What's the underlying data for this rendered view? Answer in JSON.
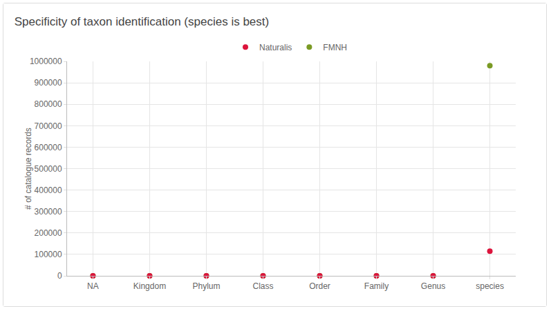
{
  "chart_data": {
    "type": "scatter",
    "title": "Specificity of taxon identification (species is best)",
    "y_label": "# of catalogue records",
    "categories": [
      "NA",
      "Kingdom",
      "Phylum",
      "Class",
      "Order",
      "Family",
      "Genus",
      "species"
    ],
    "series": [
      {
        "name": "Naturalis",
        "color": "#dc143c",
        "values": [
          0,
          0,
          0,
          0,
          0,
          0,
          0,
          115000
        ]
      },
      {
        "name": "FMNH",
        "color": "#7a9a24",
        "values": [
          0,
          0,
          0,
          0,
          0,
          0,
          0,
          980000
        ]
      }
    ],
    "ylim": [
      0,
      1000000
    ],
    "yticks": [
      0,
      100000,
      200000,
      300000,
      400000,
      500000,
      600000,
      700000,
      800000,
      900000,
      1000000
    ],
    "grid": true,
    "legend": "top",
    "marker": "circle"
  }
}
